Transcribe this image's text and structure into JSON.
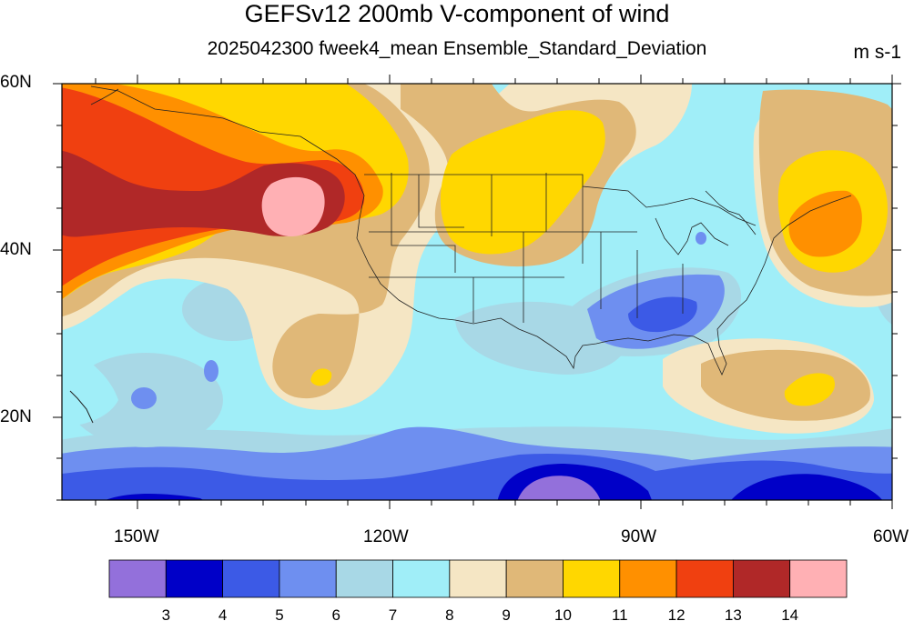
{
  "title": "GEFSv12 200mb V-component of wind",
  "subtitle": "2025042300 fweek4_mean Ensemble_Standard_Deviation",
  "units": "m s-1",
  "map": {
    "lat_labels": [
      "60N",
      "40N",
      "20N"
    ],
    "lon_labels": [
      "150W",
      "120W",
      "90W",
      "60W"
    ]
  },
  "colorbar": {
    "colors": [
      "#9370db",
      "#0000c8",
      "#3c5ae6",
      "#6e8ff0",
      "#a8d8e6",
      "#a0eef8",
      "#f5e6c4",
      "#e0b878",
      "#ffd700",
      "#ff9000",
      "#f04010",
      "#b02828",
      "#ffb0b4"
    ],
    "labels": [
      "3",
      "4",
      "5",
      "6",
      "7",
      "8",
      "9",
      "10",
      "11",
      "12",
      "13",
      "14"
    ]
  }
}
